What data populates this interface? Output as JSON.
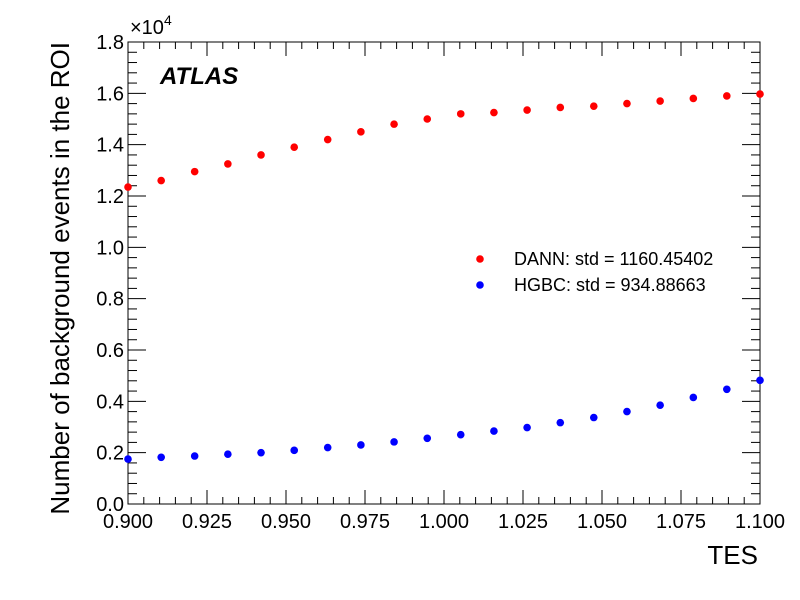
{
  "chart_data": {
    "type": "scatter",
    "experiment_label": "ATLAS",
    "xlabel": "TES",
    "ylabel": "Number of background events in the ROI",
    "y_multiplier_base": "×10",
    "y_multiplier_exp": "4",
    "xlim": [
      0.9,
      1.1
    ],
    "ylim": [
      0,
      18000
    ],
    "x_ticks": [
      "0.900",
      "0.925",
      "0.950",
      "0.975",
      "1.000",
      "1.025",
      "1.050",
      "1.075",
      "1.100"
    ],
    "y_ticks": [
      "0.0",
      "0.2",
      "0.4",
      "0.6",
      "0.8",
      "1.0",
      "1.2",
      "1.4",
      "1.6",
      "1.8"
    ],
    "grid": false,
    "legend_position": "right-middle",
    "x": [
      0.9,
      0.9105,
      0.9211,
      0.9316,
      0.9421,
      0.9526,
      0.9632,
      0.9737,
      0.9842,
      0.9947,
      1.0053,
      1.0158,
      1.0263,
      1.0368,
      1.0474,
      1.0579,
      1.0684,
      1.0789,
      1.0895,
      1.1
    ],
    "series": [
      {
        "name": "DANN: std = 1160.45402",
        "color": "#ff0000",
        "values": [
          12350,
          12600,
          12950,
          13250,
          13600,
          13900,
          14200,
          14500,
          14800,
          15000,
          15200,
          15250,
          15350,
          15450,
          15500,
          15600,
          15700,
          15800,
          15900,
          15970
        ]
      },
      {
        "name": "HGBC: std = 934.88663",
        "color": "#0000ff",
        "values": [
          1750,
          1820,
          1870,
          1940,
          2000,
          2090,
          2200,
          2300,
          2420,
          2560,
          2700,
          2840,
          2980,
          3170,
          3370,
          3600,
          3850,
          4150,
          4470,
          4820
        ]
      }
    ]
  }
}
